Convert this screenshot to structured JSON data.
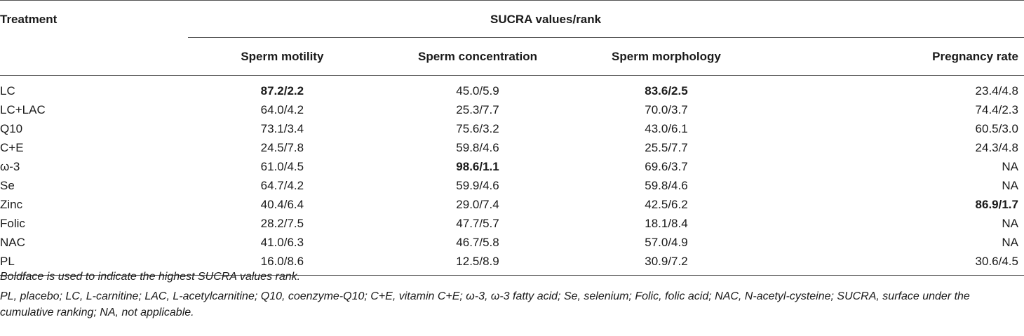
{
  "table": {
    "header": {
      "treatment": "Treatment",
      "group": "SUCRA values/rank",
      "columns": [
        "Sperm motility",
        "Sperm concentration",
        "Sperm morphology",
        "Pregnancy rate"
      ]
    },
    "rows": [
      {
        "treatment": "LC",
        "values": [
          "87.2/2.2",
          "45.0/5.9",
          "83.6/2.5",
          "23.4/4.8"
        ],
        "bold": [
          true,
          false,
          true,
          false
        ]
      },
      {
        "treatment": "LC+LAC",
        "values": [
          "64.0/4.2",
          "25.3/7.7",
          "70.0/3.7",
          "74.4/2.3"
        ],
        "bold": [
          false,
          false,
          false,
          false
        ]
      },
      {
        "treatment": "Q10",
        "values": [
          "73.1/3.4",
          "75.6/3.2",
          "43.0/6.1",
          "60.5/3.0"
        ],
        "bold": [
          false,
          false,
          false,
          false
        ]
      },
      {
        "treatment": "C+E",
        "values": [
          "24.5/7.8",
          "59.8/4.6",
          "25.5/7.7",
          "24.3/4.8"
        ],
        "bold": [
          false,
          false,
          false,
          false
        ]
      },
      {
        "treatment": "ω-3",
        "values": [
          "61.0/4.5",
          "98.6/1.1",
          "69.6/3.7",
          "NA"
        ],
        "bold": [
          false,
          true,
          false,
          false
        ]
      },
      {
        "treatment": "Se",
        "values": [
          "64.7/4.2",
          "59.9/4.6",
          "59.8/4.6",
          "NA"
        ],
        "bold": [
          false,
          false,
          false,
          false
        ]
      },
      {
        "treatment": "Zinc",
        "values": [
          "40.4/6.4",
          "29.0/7.4",
          "42.5/6.2",
          "86.9/1.7"
        ],
        "bold": [
          false,
          false,
          false,
          true
        ]
      },
      {
        "treatment": "Folic",
        "values": [
          "28.2/7.5",
          "47.7/5.7",
          "18.1/8.4",
          "NA"
        ],
        "bold": [
          false,
          false,
          false,
          false
        ]
      },
      {
        "treatment": "NAC",
        "values": [
          "41.0/6.3",
          "46.7/5.8",
          "57.0/4.9",
          "NA"
        ],
        "bold": [
          false,
          false,
          false,
          false
        ]
      },
      {
        "treatment": "PL",
        "values": [
          "16.0/8.6",
          "12.5/8.9",
          "30.9/7.2",
          "30.6/4.5"
        ],
        "bold": [
          false,
          false,
          false,
          false
        ]
      }
    ]
  },
  "footnotes": {
    "note1": "Boldface is used to indicate the highest SUCRA values rank.",
    "note2": "PL, placebo; LC, L-carnitine; LAC, L-acetylcarnitine; Q10, coenzyme-Q10; C+E, vitamin C+E; ω-3, ω-3 fatty acid; Se, selenium; Folic, folic acid; NAC, N-acetyl-cysteine; SUCRA, surface under the cumulative ranking; NA, not applicable."
  }
}
